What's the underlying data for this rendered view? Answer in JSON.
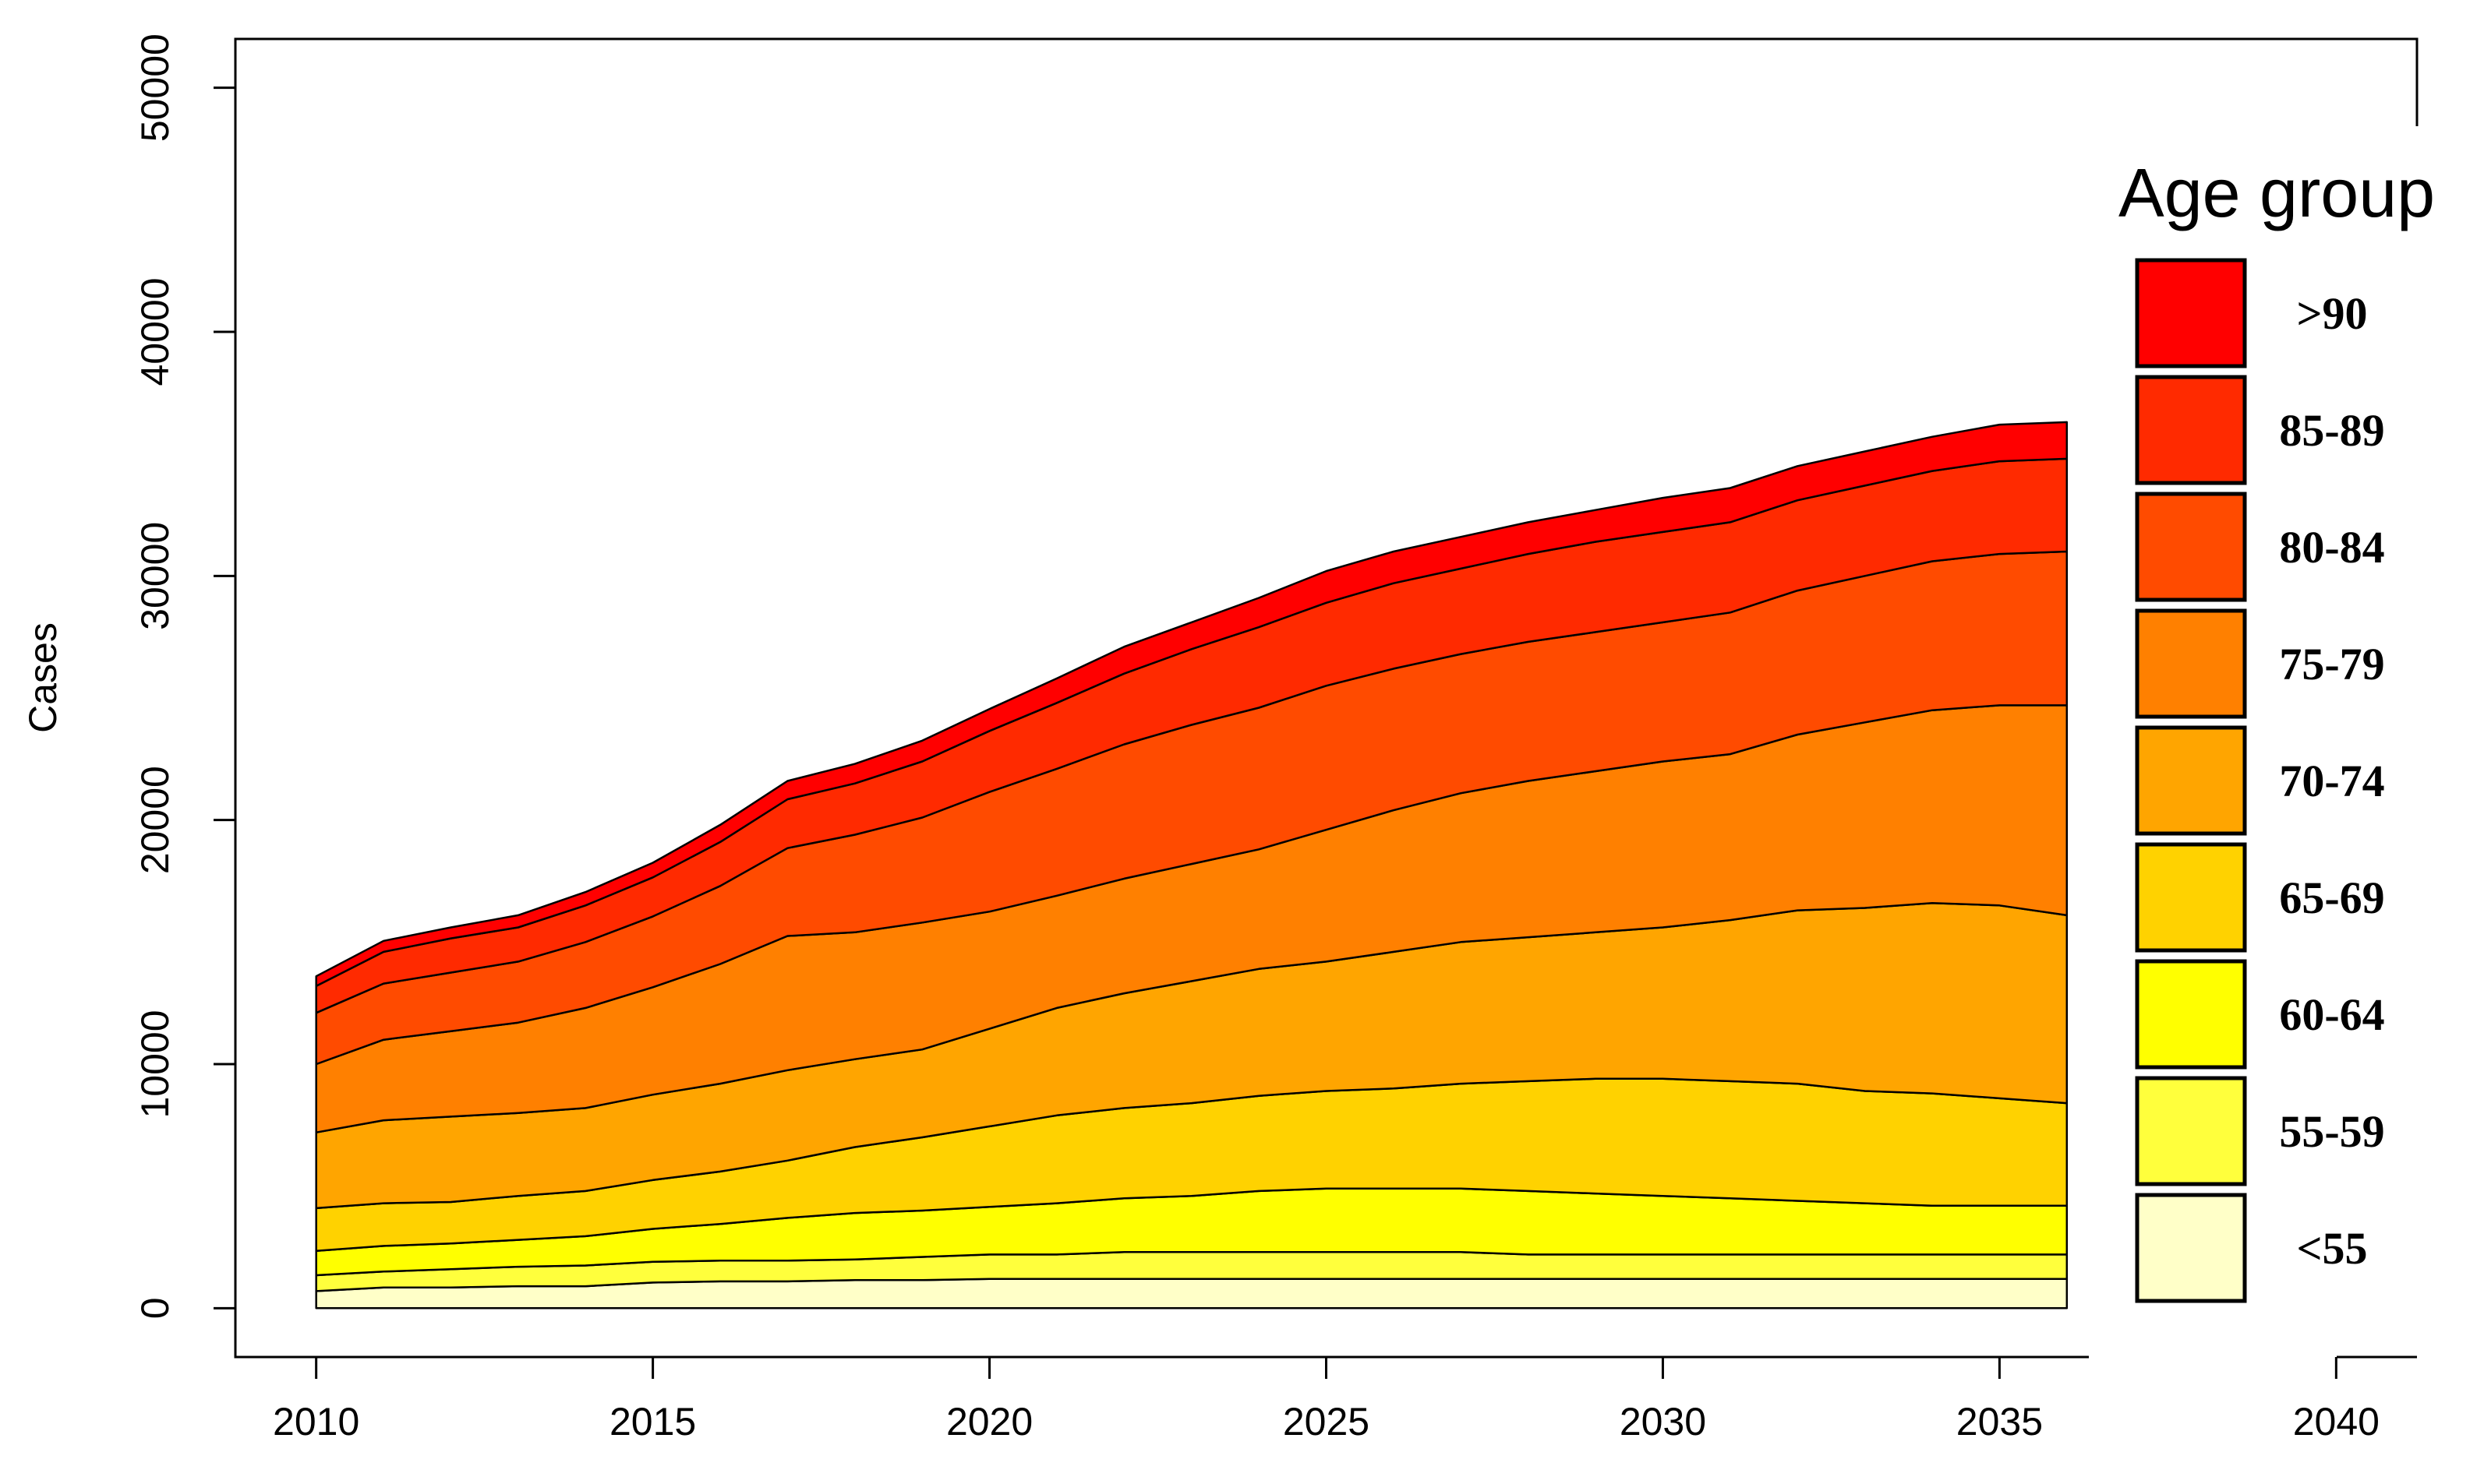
{
  "chart_data": {
    "type": "area",
    "stacked": true,
    "title": "",
    "xlabel": "",
    "ylabel": "Cases",
    "xlim": [
      2008.8,
      2041.2
    ],
    "ylim": [
      -2000,
      52000
    ],
    "x_ticks": [
      2010,
      2015,
      2020,
      2025,
      2030,
      2035,
      2040
    ],
    "y_ticks": [
      0,
      10000,
      20000,
      30000,
      40000,
      50000
    ],
    "x_tick_labels": [
      "2010",
      "2015",
      "2020",
      "2025",
      "2030",
      "2035",
      "2040"
    ],
    "y_tick_labels": [
      "0",
      "10000",
      "20000",
      "30000",
      "40000",
      "50000"
    ],
    "x": [
      2010,
      2011,
      2012,
      2013,
      2014,
      2015,
      2016,
      2017,
      2018,
      2019,
      2020,
      2021,
      2022,
      2023,
      2024,
      2025,
      2026,
      2027,
      2028,
      2029,
      2030,
      2031,
      2032,
      2033,
      2034,
      2035,
      2036
    ],
    "series": [
      {
        "name": "<55",
        "color": "#FFFFC8",
        "values": [
          700,
          850,
          850,
          900,
          900,
          1050,
          1100,
          1100,
          1150,
          1150,
          1200,
          1200,
          1200,
          1200,
          1200,
          1200,
          1200,
          1200,
          1200,
          1200,
          1200,
          1200,
          1200,
          1200,
          1200,
          1200,
          1200
        ]
      },
      {
        "name": "55-59",
        "color": "#FFFF3C",
        "values": [
          650,
          650,
          750,
          800,
          850,
          850,
          850,
          850,
          850,
          950,
          1000,
          1000,
          1100,
          1100,
          1100,
          1100,
          1100,
          1100,
          1000,
          1000,
          1000,
          1000,
          1000,
          1000,
          1000,
          1000,
          1000
        ]
      },
      {
        "name": "60-64",
        "color": "#FFFF00",
        "values": [
          1000,
          1050,
          1050,
          1100,
          1200,
          1350,
          1500,
          1750,
          1900,
          1900,
          1950,
          2100,
          2200,
          2300,
          2500,
          2600,
          2600,
          2600,
          2600,
          2500,
          2400,
          2300,
          2200,
          2100,
          2000,
          2000,
          2000
        ]
      },
      {
        "name": "65-69",
        "color": "#FFD200",
        "values": [
          1750,
          1750,
          1700,
          1800,
          1850,
          2000,
          2150,
          2350,
          2700,
          3000,
          3300,
          3600,
          3700,
          3800,
          3900,
          4000,
          4100,
          4300,
          4500,
          4700,
          4800,
          4800,
          4800,
          4600,
          4600,
          4400,
          4200
        ]
      },
      {
        "name": "70-74",
        "color": "#FFA500",
        "values": [
          3100,
          3400,
          3500,
          3400,
          3400,
          3500,
          3600,
          3700,
          3600,
          3600,
          4000,
          4400,
          4700,
          5000,
          5200,
          5300,
          5600,
          5800,
          5900,
          6000,
          6200,
          6600,
          7100,
          7500,
          7800,
          7900,
          7700
        ]
      },
      {
        "name": "75-79",
        "color": "#FF8000",
        "values": [
          2800,
          3300,
          3500,
          3700,
          4100,
          4400,
          4900,
          5500,
          5200,
          5200,
          4800,
          4600,
          4700,
          4800,
          4900,
          5400,
          5800,
          6100,
          6400,
          6600,
          6800,
          6800,
          7200,
          7600,
          7900,
          8200,
          8600
        ]
      },
      {
        "name": "80-84",
        "color": "#FF4B00",
        "values": [
          2100,
          2300,
          2400,
          2500,
          2700,
          2900,
          3200,
          3600,
          4000,
          4300,
          4900,
          5200,
          5500,
          5700,
          5800,
          5900,
          5800,
          5700,
          5700,
          5700,
          5700,
          5800,
          5900,
          6000,
          6100,
          6200,
          6300
        ]
      },
      {
        "name": "85-89",
        "color": "#FF2A00",
        "values": [
          1100,
          1300,
          1400,
          1400,
          1500,
          1600,
          1800,
          2000,
          2100,
          2300,
          2500,
          2700,
          2900,
          3100,
          3300,
          3400,
          3500,
          3500,
          3600,
          3700,
          3700,
          3700,
          3700,
          3700,
          3700,
          3800,
          3800
        ]
      },
      {
        "name": ">90",
        "color": "#FF0000",
        "values": [
          400,
          450,
          450,
          500,
          550,
          600,
          700,
          750,
          800,
          850,
          900,
          1000,
          1100,
          1100,
          1200,
          1300,
          1300,
          1300,
          1300,
          1300,
          1400,
          1400,
          1400,
          1400,
          1400,
          1500,
          1500
        ]
      }
    ],
    "legend": {
      "title": "Age group",
      "placement": "right",
      "order": [
        ">90",
        "85-89",
        "80-84",
        "75-79",
        "70-74",
        "65-69",
        "60-64",
        "55-59",
        "<55"
      ]
    },
    "grid": false
  }
}
